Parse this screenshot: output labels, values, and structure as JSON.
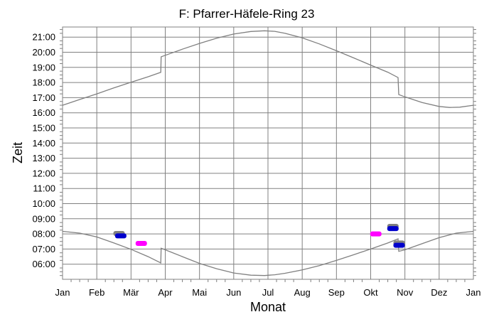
{
  "chart_data": {
    "type": "line",
    "title": "F: Pfarrer-Häfele-Ring 23",
    "xlabel": "Monat",
    "ylabel": "Zeit",
    "x_ticks": [
      "Jan",
      "Feb",
      "Mär",
      "Apr",
      "Mai",
      "Jun",
      "Jul",
      "Aug",
      "Sep",
      "Okt",
      "Nov",
      "Dez",
      "Jan"
    ],
    "y_ticks": [
      "06:00",
      "07:00",
      "08:00",
      "09:00",
      "10:00",
      "11:00",
      "12:00",
      "13:00",
      "14:00",
      "15:00",
      "16:00",
      "17:00",
      "18:00",
      "19:00",
      "20:00",
      "21:00"
    ],
    "xlim": [
      0,
      12
    ],
    "ylim": [
      "05:00",
      "21:40"
    ],
    "grid": true,
    "series": [
      {
        "role": "upper",
        "color": "#808080",
        "points": [
          [
            0.0,
            16.5
          ],
          [
            0.5,
            16.88
          ],
          [
            1.0,
            17.25
          ],
          [
            1.5,
            17.65
          ],
          [
            2.0,
            18.02
          ],
          [
            2.5,
            18.38
          ],
          [
            2.87,
            18.67
          ],
          [
            2.88,
            19.7
          ],
          [
            3.0,
            19.8
          ],
          [
            3.5,
            20.2
          ],
          [
            4.0,
            20.58
          ],
          [
            4.5,
            20.93
          ],
          [
            5.0,
            21.2
          ],
          [
            5.5,
            21.37
          ],
          [
            5.9,
            21.42
          ],
          [
            6.2,
            21.38
          ],
          [
            6.5,
            21.25
          ],
          [
            7.0,
            20.95
          ],
          [
            7.5,
            20.55
          ],
          [
            8.0,
            20.1
          ],
          [
            8.5,
            19.63
          ],
          [
            9.0,
            19.15
          ],
          [
            9.5,
            18.68
          ],
          [
            9.8,
            18.33
          ],
          [
            9.82,
            17.2
          ],
          [
            10.0,
            17.05
          ],
          [
            10.5,
            16.68
          ],
          [
            11.0,
            16.42
          ],
          [
            11.3,
            16.35
          ],
          [
            11.6,
            16.37
          ],
          [
            12.0,
            16.5
          ]
        ]
      },
      {
        "role": "lower",
        "color": "#808080",
        "points": [
          [
            0.0,
            8.17
          ],
          [
            0.5,
            8.05
          ],
          [
            1.0,
            7.8
          ],
          [
            1.5,
            7.4
          ],
          [
            2.0,
            6.98
          ],
          [
            2.5,
            6.5
          ],
          [
            2.87,
            6.08
          ],
          [
            2.88,
            7.05
          ],
          [
            3.0,
            6.95
          ],
          [
            3.5,
            6.5
          ],
          [
            4.0,
            6.05
          ],
          [
            4.5,
            5.7
          ],
          [
            5.0,
            5.42
          ],
          [
            5.5,
            5.27
          ],
          [
            5.9,
            5.25
          ],
          [
            6.2,
            5.3
          ],
          [
            6.5,
            5.4
          ],
          [
            7.0,
            5.62
          ],
          [
            7.5,
            5.9
          ],
          [
            8.0,
            6.25
          ],
          [
            8.5,
            6.62
          ],
          [
            9.0,
            7.0
          ],
          [
            9.5,
            7.4
          ],
          [
            9.8,
            7.67
          ],
          [
            9.82,
            6.85
          ],
          [
            10.0,
            6.95
          ],
          [
            10.5,
            7.35
          ],
          [
            11.0,
            7.75
          ],
          [
            11.5,
            8.05
          ],
          [
            12.0,
            8.17
          ]
        ]
      }
    ],
    "markers": [
      {
        "x": 1.65,
        "y": 8.03,
        "color": "#808080"
      },
      {
        "x": 1.7,
        "y": 7.87,
        "color": "#0000cc"
      },
      {
        "x": 2.3,
        "y": 7.37,
        "color": "#ff00ff"
      },
      {
        "x": 9.15,
        "y": 8.0,
        "color": "#ff00ff"
      },
      {
        "x": 9.65,
        "y": 8.5,
        "color": "#808080"
      },
      {
        "x": 9.65,
        "y": 8.35,
        "color": "#0000cc"
      },
      {
        "x": 9.83,
        "y": 7.4,
        "color": "#808080"
      },
      {
        "x": 9.83,
        "y": 7.25,
        "color": "#0000cc"
      }
    ]
  }
}
